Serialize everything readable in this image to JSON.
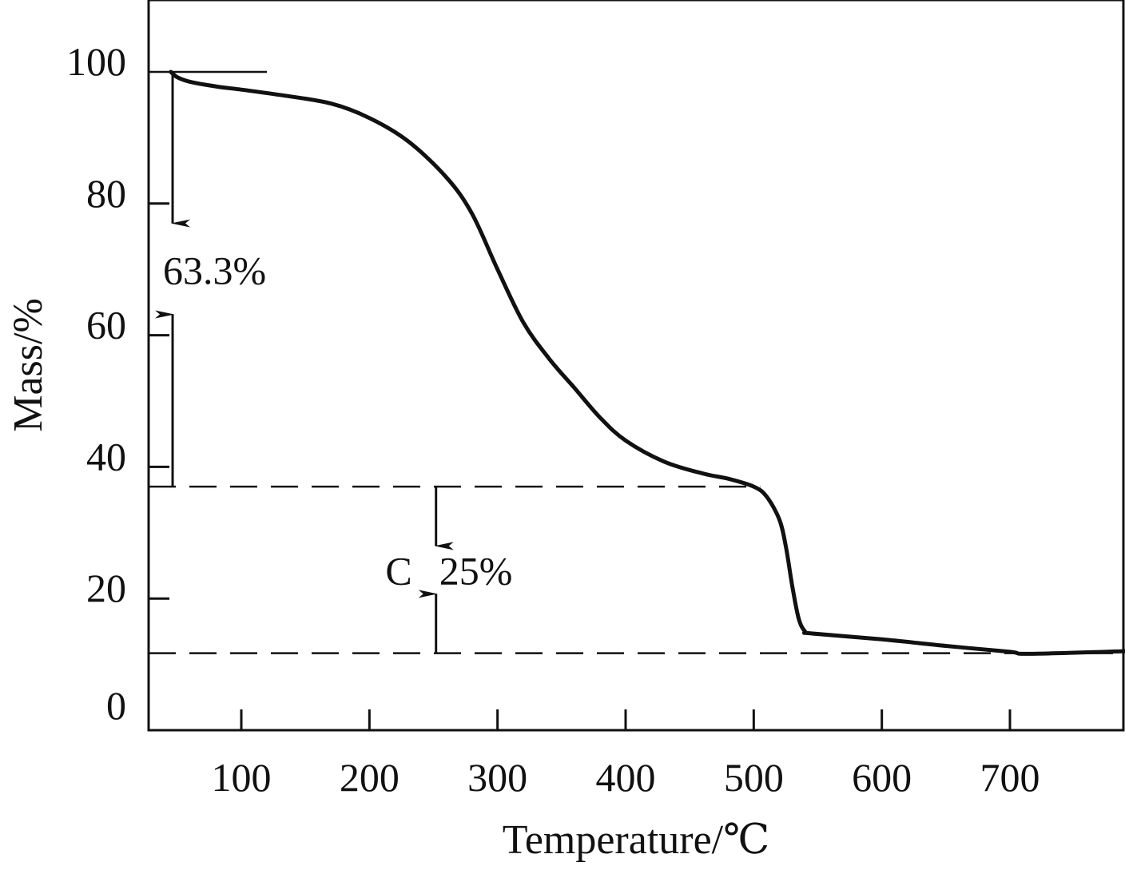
{
  "chart_data": {
    "type": "line",
    "xlabel": "Temperature/℃",
    "ylabel": "Mass/%",
    "xlim": [
      27,
      790
    ],
    "ylim": [
      0,
      110
    ],
    "x_ticks": [
      100,
      200,
      300,
      400,
      500,
      600,
      700
    ],
    "y_ticks": [
      0,
      20,
      40,
      60,
      80,
      100
    ],
    "grid": false,
    "series": [
      {
        "x": [
          45,
          50,
          60,
          80,
          100,
          130,
          170,
          200,
          230,
          260,
          280,
          300,
          320,
          340,
          360,
          380,
          400,
          430,
          460,
          480,
          500,
          510,
          520,
          525,
          530,
          535,
          540,
          545,
          600,
          650,
          700,
          715,
          790
        ],
        "values": [
          100,
          99.2,
          98.5,
          97.8,
          97.3,
          96.5,
          95.2,
          93,
          89.5,
          84,
          78.5,
          70,
          62,
          56.5,
          52,
          47.5,
          44,
          40.8,
          39,
          38.2,
          37,
          35.5,
          32,
          28,
          22,
          17,
          15,
          14.7,
          13.8,
          12.8,
          11.9,
          11.6,
          12
        ]
      }
    ],
    "reference_lines": [
      {
        "y": 100,
        "x_from": 27,
        "x_to": 120,
        "style": "solid"
      },
      {
        "y": 37,
        "x_from": 27,
        "x_to": 505,
        "style": "dashed"
      },
      {
        "y": 11.7,
        "x_from": 27,
        "x_to": 790,
        "style": "dashed"
      }
    ],
    "annotations": [
      {
        "text": "63.3%",
        "x": 47,
        "y_from": 100,
        "y_to": 37
      },
      {
        "text": "C",
        "x": 252,
        "y_from": 37,
        "y_to": 11.7
      },
      {
        "text": "25%",
        "x": 252,
        "y_from": 37,
        "y_to": 11.7
      }
    ]
  }
}
